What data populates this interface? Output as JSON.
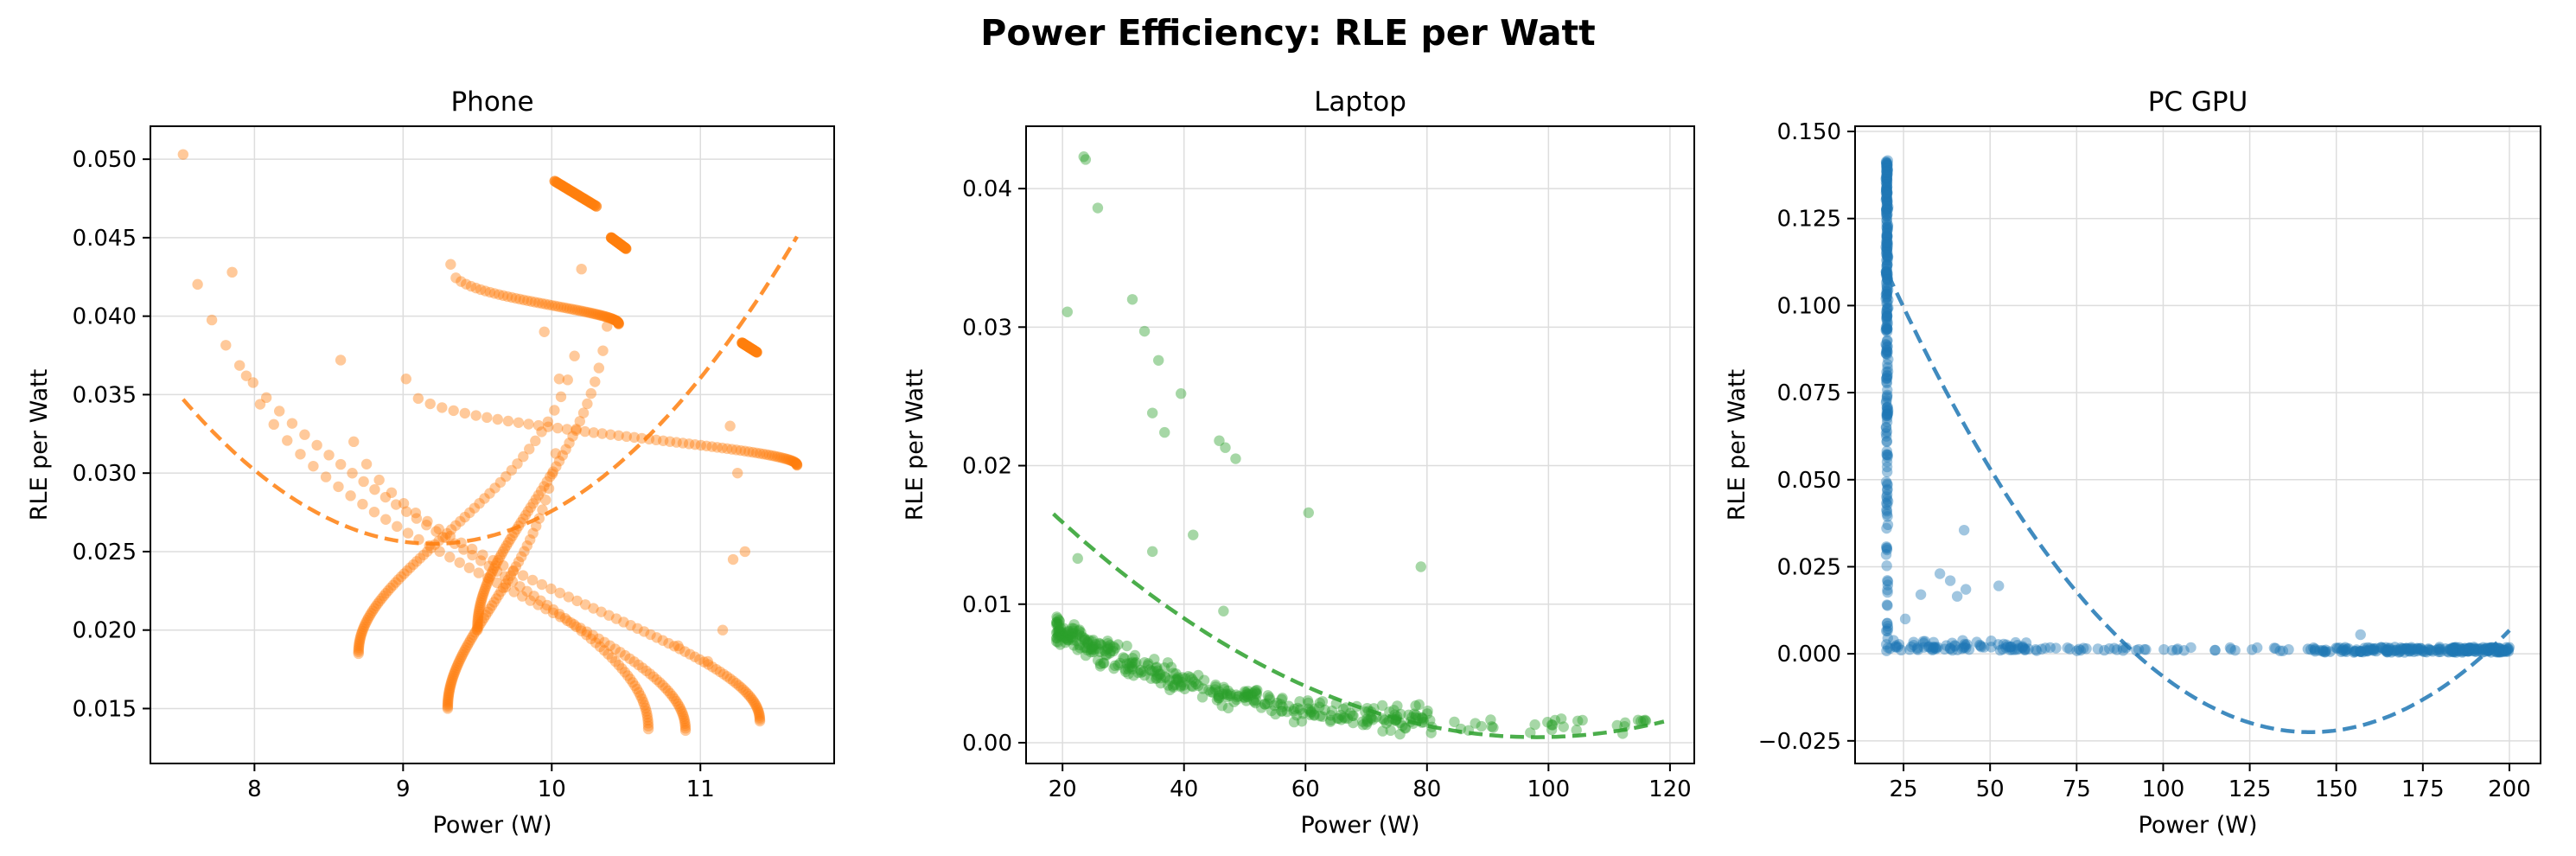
{
  "figure": {
    "title": "Power Efficiency: RLE per Watt"
  },
  "chart_data": [
    {
      "type": "scatter",
      "title": "Phone",
      "xlabel": "Power (W)",
      "ylabel": "RLE per Watt",
      "xlim": [
        7.3,
        11.9
      ],
      "ylim": [
        0.0115,
        0.0521
      ],
      "xticks": [
        8,
        9,
        10,
        11
      ],
      "xtick_labels": [
        "8",
        "9",
        "10",
        "11"
      ],
      "yticks": [
        0.015,
        0.02,
        0.025,
        0.03,
        0.035,
        0.04,
        0.045,
        0.05
      ],
      "ytick_labels": [
        "0.015",
        "0.020",
        "0.025",
        "0.030",
        "0.035",
        "0.040",
        "0.045",
        "0.050"
      ],
      "grid": true,
      "color": "#ff7f0e",
      "curves": [
        {
          "peak": [
            7.52,
            0.0503
          ],
          "end": [
            10.65,
            0.0137
          ]
        },
        {
          "peak": [
            7.85,
            0.0428
          ],
          "end": [
            10.9,
            0.0136
          ]
        },
        {
          "peak": [
            8.58,
            0.0372
          ],
          "end": [
            11.4,
            0.0142
          ]
        },
        {
          "peak": [
            9.02,
            0.036
          ],
          "end": [
            11.65,
            0.0305
          ]
        },
        {
          "peak": [
            9.32,
            0.0433
          ],
          "end": [
            10.45,
            0.0395
          ]
        },
        {
          "peak": [
            10.05,
            0.036
          ],
          "end": [
            9.3,
            0.015
          ]
        },
        {
          "peak": [
            10.2,
            0.043
          ],
          "end": [
            8.7,
            0.0185
          ]
        },
        {
          "peak": [
            10.4,
            0.045
          ],
          "end": [
            9.5,
            0.02
          ]
        }
      ],
      "clusters": [
        {
          "from": [
            10.02,
            0.0486
          ],
          "to": [
            10.3,
            0.047
          ]
        },
        {
          "from": [
            10.4,
            0.045
          ],
          "to": [
            10.5,
            0.0443
          ]
        },
        {
          "from": [
            11.28,
            0.0383
          ],
          "to": [
            11.38,
            0.0377
          ]
        }
      ],
      "scatter_extra": [
        [
          11.05,
          0.018
        ],
        [
          11.15,
          0.02
        ],
        [
          11.22,
          0.0245
        ],
        [
          11.25,
          0.03
        ],
        [
          11.2,
          0.033
        ],
        [
          10.85,
          0.019
        ],
        [
          9.95,
          0.039
        ],
        [
          11.3,
          0.025
        ]
      ],
      "trend": {
        "a": 0.00326,
        "h": 9.2,
        "k": 0.0255,
        "x": [
          7.52,
          11.65
        ],
        "style": "dashed"
      }
    },
    {
      "type": "scatter",
      "title": "Laptop",
      "xlabel": "Power (W)",
      "ylabel": "RLE per Watt",
      "xlim": [
        14,
        124
      ],
      "ylim": [
        -0.0015,
        0.0445
      ],
      "xticks": [
        20,
        40,
        60,
        80,
        100,
        120
      ],
      "xtick_labels": [
        "20",
        "40",
        "60",
        "80",
        "100",
        "120"
      ],
      "yticks": [
        0,
        0.01,
        0.02,
        0.03,
        0.04
      ],
      "ytick_labels": [
        "0.00",
        "0.01",
        "0.02",
        "0.03",
        "0.04"
      ],
      "grid": true,
      "color": "#2ca02c",
      "outliers": [
        [
          23.5,
          0.0423
        ],
        [
          23.8,
          0.0421
        ],
        [
          25.8,
          0.0386
        ],
        [
          20.8,
          0.0311
        ],
        [
          31.5,
          0.032
        ],
        [
          33.5,
          0.0297
        ],
        [
          35.8,
          0.0276
        ],
        [
          39.5,
          0.0252
        ],
        [
          34.8,
          0.0238
        ],
        [
          36.8,
          0.0224
        ],
        [
          45.8,
          0.0218
        ],
        [
          46.8,
          0.0213
        ],
        [
          48.5,
          0.0205
        ],
        [
          60.5,
          0.0166
        ],
        [
          41.5,
          0.015
        ],
        [
          34.8,
          0.0138
        ],
        [
          22.5,
          0.0133
        ],
        [
          79.0,
          0.0127
        ],
        [
          46.5,
          0.0095
        ]
      ],
      "trend": {
        "a": 2.55e-06,
        "h": 98,
        "k": 0.0004,
        "x": [
          18.5,
          119
        ],
        "style": "dashed"
      }
    },
    {
      "type": "scatter",
      "title": "PC GPU",
      "xlabel": "Power (W)",
      "ylabel": "RLE per Watt",
      "xlim": [
        11,
        209
      ],
      "ylim": [
        -0.0315,
        0.1515
      ],
      "xticks": [
        25,
        50,
        75,
        100,
        125,
        150,
        175,
        200
      ],
      "xtick_labels": [
        "25",
        "50",
        "75",
        "100",
        "125",
        "150",
        "175",
        "200"
      ],
      "yticks": [
        -0.025,
        0,
        0.025,
        0.05,
        0.075,
        0.1,
        0.125,
        0.15
      ],
      "ytick_labels": [
        "−0.025",
        "0.000",
        "0.025",
        "0.050",
        "0.075",
        "0.100",
        "0.125",
        "0.150"
      ],
      "grid": true,
      "color": "#1f77b4",
      "outliers": [
        [
          35.5,
          0.023
        ],
        [
          38.5,
          0.021
        ],
        [
          42.5,
          0.0355
        ],
        [
          43.0,
          0.0185
        ],
        [
          40.5,
          0.0165
        ],
        [
          52.5,
          0.0195
        ],
        [
          25.5,
          0.01
        ],
        [
          157,
          0.0055
        ],
        [
          108,
          0.0018
        ],
        [
          95,
          0.0012
        ],
        [
          115,
          0.001
        ],
        [
          83,
          0.001
        ],
        [
          30,
          0.017
        ]
      ],
      "trend": {
        "a": 8.84e-06,
        "h": 142.5,
        "k": -0.0225,
        "x": [
          20.5,
          200
        ],
        "style": "dashed"
      }
    }
  ]
}
